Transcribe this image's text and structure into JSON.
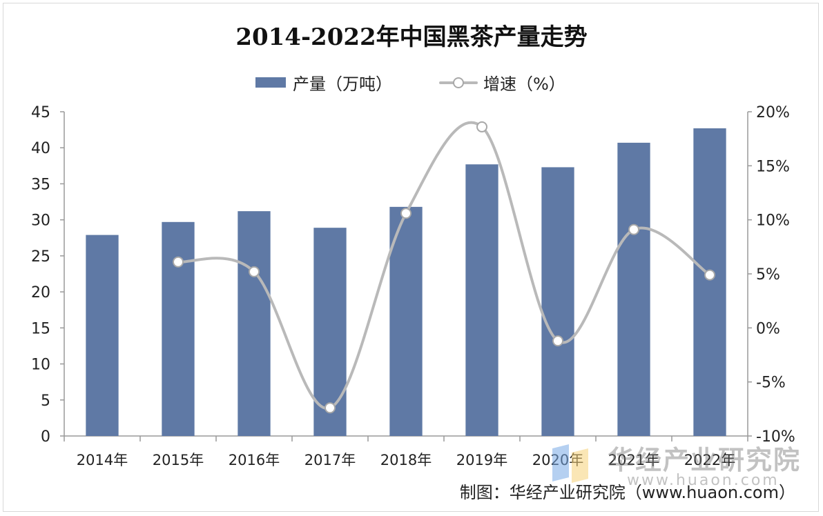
{
  "chart_data": {
    "type": "bar",
    "title": "2014-2022年中国黑茶产量走势",
    "categories": [
      "2014年",
      "2015年",
      "2016年",
      "2017年",
      "2018年",
      "2019年",
      "2020年",
      "2021年",
      "2022年"
    ],
    "series": [
      {
        "name": "产量（万吨）",
        "type": "bar",
        "axis": "left",
        "values": [
          27.9,
          29.7,
          31.2,
          28.9,
          31.8,
          37.7,
          37.3,
          40.7,
          42.7
        ],
        "color": "#5f79a5"
      },
      {
        "name": "增速（%）",
        "type": "line",
        "axis": "right",
        "values": [
          null,
          6.1,
          5.2,
          -7.4,
          10.6,
          18.6,
          -1.2,
          9.1,
          4.9
        ],
        "color": "#b9b9b9"
      }
    ],
    "y_left": {
      "min": 0,
      "max": 45,
      "step": 5,
      "tick_labels": [
        "0",
        "5",
        "10",
        "15",
        "20",
        "25",
        "30",
        "35",
        "40",
        "45"
      ]
    },
    "y_right": {
      "min": -10,
      "max": 20,
      "step": 5,
      "tick_labels": [
        "-10%",
        "-5%",
        "0%",
        "5%",
        "10%",
        "15%",
        "20%"
      ]
    },
    "legend_position": "top-center",
    "grid": false
  },
  "legend": {
    "bar_label": "产量（万吨）",
    "line_label": "增速（%）"
  },
  "watermark": {
    "text": "华经产业研究院",
    "url": "www.huaon.com"
  },
  "source": "制图：华经产业研究院（www.huaon.com）"
}
